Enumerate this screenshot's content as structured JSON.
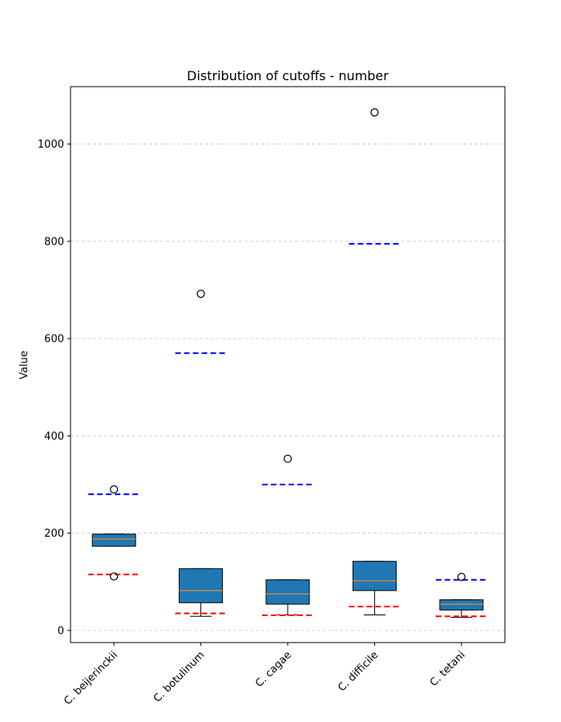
{
  "chart_data": {
    "type": "box",
    "title": "Distribution of cutoffs - number",
    "xlabel": "",
    "ylabel": "Value",
    "ylim": [
      -25,
      1118
    ],
    "yticks": [
      0,
      200,
      400,
      600,
      800,
      1000
    ],
    "grid": "horizontal dashed",
    "categories": [
      "C. beijerinckii",
      "C. botulinum",
      "C. cagae",
      "C. difficile",
      "C. tetani"
    ],
    "boxes": [
      {
        "category": "C. beijerinckii",
        "whisker_low": 173,
        "q1": 173,
        "median": 188,
        "q3": 198,
        "whisker_high": 198,
        "outliers": [
          290,
          111
        ],
        "upper_cutoff": 280,
        "lower_cutoff": 115
      },
      {
        "category": "C. botulinum",
        "whisker_low": 29,
        "q1": 57,
        "median": 82,
        "q3": 127,
        "whisker_high": 127,
        "outliers": [
          692
        ],
        "upper_cutoff": 570,
        "lower_cutoff": 35
      },
      {
        "category": "C. cagae",
        "whisker_low": 32,
        "q1": 54,
        "median": 75,
        "q3": 104,
        "whisker_high": 104,
        "outliers": [
          353
        ],
        "upper_cutoff": 300,
        "lower_cutoff": 31
      },
      {
        "category": "C. difficile",
        "whisker_low": 32,
        "q1": 82,
        "median": 102,
        "q3": 142,
        "whisker_high": 142,
        "outliers": [
          1065
        ],
        "upper_cutoff": 795,
        "lower_cutoff": 49
      },
      {
        "category": "C. tetani",
        "whisker_low": 27,
        "q1": 42,
        "median": 54,
        "q3": 63,
        "whisker_high": 63,
        "outliers": [
          110
        ],
        "upper_cutoff": 104,
        "lower_cutoff": 29
      }
    ],
    "colors": {
      "box_fill": "#1f77b4",
      "median": "#e08a2c",
      "upper_cutoff": "#0000ff",
      "lower_cutoff": "#ff0000",
      "grid": "#cccccc"
    }
  }
}
